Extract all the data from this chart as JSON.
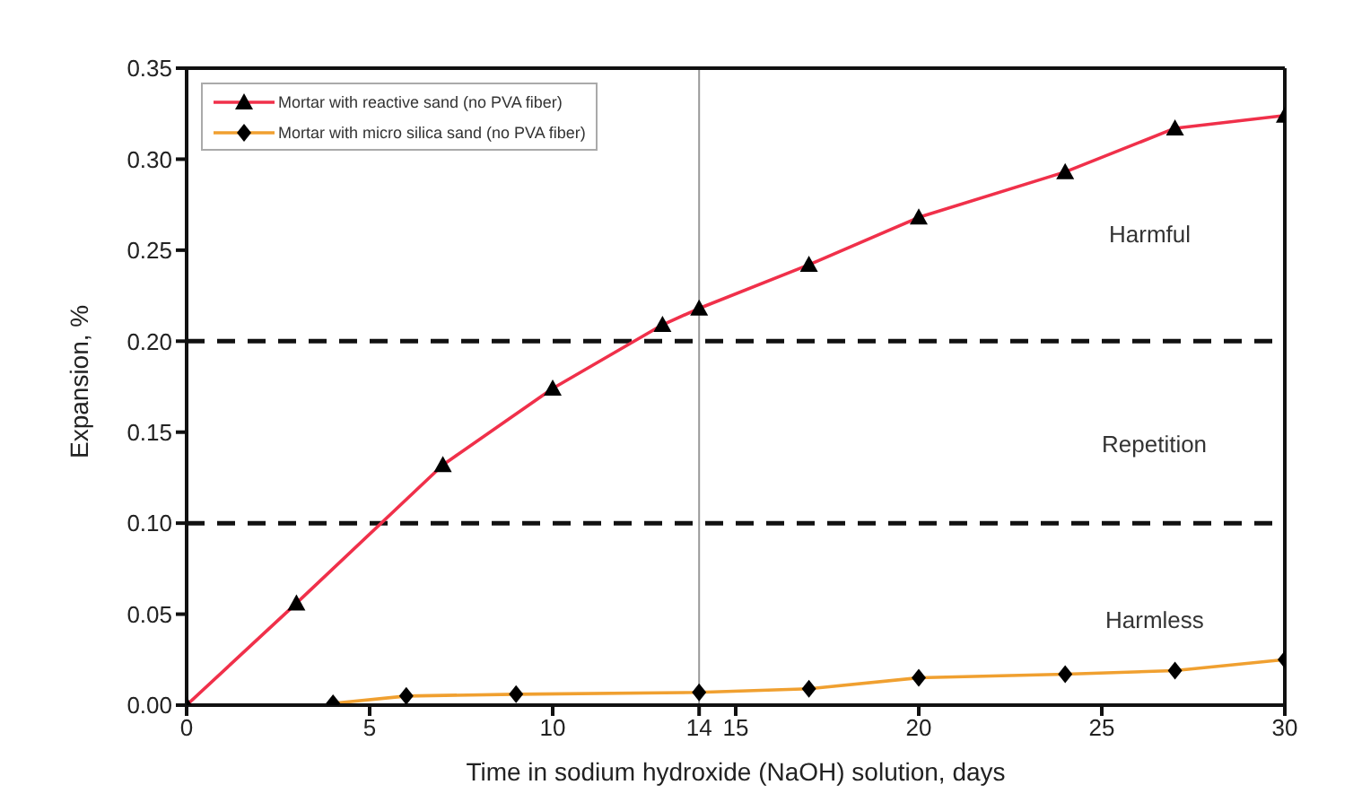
{
  "chart_data": {
    "type": "line",
    "xlabel": "Time in sodium hydroxide (NaOH) solution, days",
    "ylabel": "Expansion, %",
    "xlim": [
      0,
      30
    ],
    "xticks": [
      0,
      5,
      10,
      14,
      15,
      20,
      25,
      30
    ],
    "ylim": [
      0,
      0.35
    ],
    "yticks": [
      {
        "value": 0,
        "label": "0.00"
      },
      0.05,
      {
        "value": 0.1,
        "label": "0.10"
      },
      0.15,
      {
        "value": 0.2,
        "label": "0.20"
      },
      0.25,
      {
        "value": 0.3,
        "label": "0.30"
      },
      0.35
    ],
    "legend": "top left",
    "line_style": "solid",
    "series": [
      {
        "name": "Mortar with reactive sand (no PVA fiber)",
        "color": "#f0304a",
        "marker": "triangle",
        "x": [
          0,
          3,
          7,
          10,
          13,
          14,
          17,
          20,
          24,
          27,
          30
        ],
        "values": [
          0,
          0.056,
          0.132,
          0.174,
          0.209,
          0.218,
          0.242,
          0.268,
          0.293,
          0.317,
          0.324
        ]
      },
      {
        "name": "Mortar with micro silica sand (no PVA fiber)",
        "color": "#f0a030",
        "marker": "diamond",
        "x": [
          4,
          6,
          9,
          14,
          17,
          20,
          24,
          27,
          30
        ],
        "values": [
          0.001,
          0.005,
          0.006,
          0.007,
          0.009,
          0.015,
          0.017,
          0.019,
          0.025
        ]
      }
    ],
    "ref_lines": [
      {
        "axis": "y",
        "value": 0.2,
        "color": "#111111",
        "line_style": "dashed"
      },
      {
        "axis": "y",
        "value": 0.1,
        "color": "#111111",
        "line_style": "dashed"
      },
      {
        "axis": "x",
        "value": 14,
        "color": "#999999",
        "line_style": "solid"
      }
    ],
    "annotations": [
      "Harmful",
      "Repetition",
      "Harmless"
    ]
  }
}
